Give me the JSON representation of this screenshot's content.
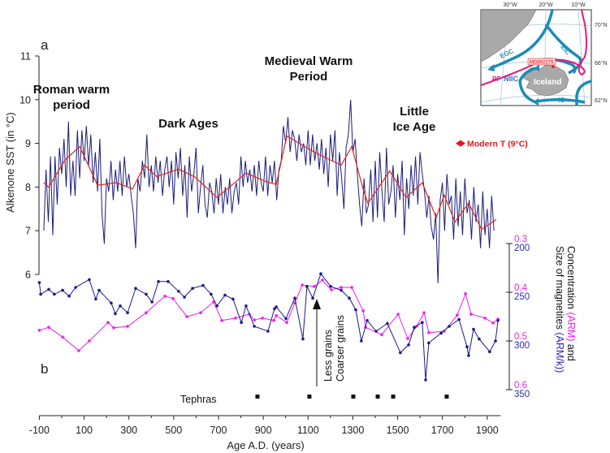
{
  "chart_data": [
    {
      "panel": "a",
      "type": "line",
      "ylabel": "Alkenone SST (in °C)",
      "xlabel": "Age A.D. (years)",
      "xlim": [
        -100,
        1960
      ],
      "ylim": [
        6,
        11
      ],
      "yticks": [
        6,
        7,
        8,
        9,
        10,
        11
      ],
      "xticks": [
        -100,
        100,
        300,
        500,
        700,
        900,
        1100,
        1300,
        1500,
        1700,
        1900
      ],
      "colors": {
        "raw": "#1c1c7c",
        "smoothed": "#e2231a"
      },
      "raw_series": {
        "x_start": -80,
        "x_step": 10,
        "values": [
          7.0,
          8.4,
          7.2,
          8.7,
          6.9,
          8.7,
          7.6,
          8.9,
          8.3,
          9.1,
          8.0,
          9.5,
          7.8,
          8.6,
          7.8,
          9.3,
          8.2,
          9.3,
          8.6,
          9.4,
          8.5,
          9.2,
          8.1,
          8.8,
          7.9,
          9.1,
          7.4,
          6.7,
          8.2,
          7.9,
          8.6,
          7.7,
          8.4,
          7.9,
          8.6,
          7.8,
          8.7,
          8.0,
          8.3,
          7.8,
          7.4,
          6.6,
          8.2,
          7.9,
          8.6,
          8.2,
          9.2,
          8.0,
          8.5,
          7.9,
          8.7,
          8.1,
          8.6,
          7.8,
          8.4,
          8.7,
          8.0,
          8.6,
          7.6,
          8.8,
          8.2,
          8.9,
          7.8,
          8.5,
          7.3,
          8.7,
          7.9,
          8.3,
          8.9,
          7.4,
          8.0,
          8.5,
          7.6,
          7.3,
          8.1,
          7.9,
          7.4,
          8.2,
          7.6,
          8.3,
          7.4,
          8.0,
          7.6,
          8.2,
          7.4,
          7.9,
          8.1,
          7.6,
          8.7,
          8.0,
          8.6,
          8.1,
          8.4,
          7.9,
          8.5,
          7.8,
          8.6,
          8.1,
          7.9,
          8.7,
          7.8,
          8.5,
          8.1,
          8.6,
          7.7,
          8.4,
          8.6,
          9.4,
          9.0,
          9.6,
          8.8,
          9.3,
          9.1,
          8.6,
          9.2,
          8.8,
          9.0,
          8.5,
          9.3,
          8.5,
          9.2,
          8.6,
          9.0,
          8.4,
          9.1,
          8.3,
          8.9,
          8.0,
          9.2,
          8.6,
          9.3,
          7.8,
          8.8,
          8.2,
          7.5,
          8.9,
          9.2,
          10.0,
          8.8,
          9.1,
          8.3,
          7.6,
          7.1,
          8.2,
          7.4,
          7.6,
          8.4,
          7.2,
          8.6,
          7.3,
          8.8,
          7.9,
          7.2,
          8.9,
          7.6,
          7.9,
          8.5,
          7.3,
          8.3,
          7.7,
          8.6,
          6.9,
          8.2,
          7.5,
          8.5,
          7.8,
          8.7,
          7.6,
          8.8,
          8.3,
          7.9,
          7.3,
          7.8,
          7.1,
          6.8,
          7.4,
          5.8,
          7.7,
          8.1,
          7.0,
          8.3,
          7.6,
          7.8,
          6.8,
          8.2,
          7.1,
          7.9,
          6.9,
          8.2,
          7.4,
          7.7,
          6.8,
          8.0,
          7.2,
          7.6,
          6.6,
          7.9,
          6.9,
          7.5,
          6.6,
          7.8,
          7.0
        ]
      },
      "smoothed_series": {
        "x": [
          -80,
          -58,
          15,
          80,
          160,
          243,
          316,
          370,
          424,
          522,
          595,
          693,
          823,
          910,
          958,
          1005,
          1128,
          1248,
          1295,
          1346,
          1367,
          1465,
          1538,
          1610,
          1672,
          1708,
          1756,
          1817,
          1875,
          1940
        ],
        "y": [
          8.1,
          8.0,
          8.62,
          8.93,
          8.04,
          8.1,
          7.96,
          8.5,
          8.24,
          8.41,
          8.23,
          7.76,
          8.32,
          8.13,
          8.06,
          9.17,
          8.8,
          8.5,
          8.93,
          7.95,
          7.63,
          8.37,
          7.76,
          8.1,
          7.3,
          7.82,
          7.2,
          7.63,
          7.03,
          7.26
        ]
      },
      "annotations": {
        "roman_1": "Roman warm",
        "roman_2": "period",
        "dark_ages": "Dark Ages",
        "medieval_1": "Medieval Warm",
        "medieval_2": "Period",
        "lia_1": "Little",
        "lia_2": "Ice Age",
        "modern_t": "Modern T (9°C)",
        "modern_t_value": 9,
        "modern_t_color": "#e8141c"
      }
    },
    {
      "panel": "b",
      "type": "line",
      "right_axis": {
        "arm_ticks": [
          "0.3",
          "0.4",
          "0.5",
          "0.6"
        ],
        "armk_ticks": [
          "200",
          "250",
          "300",
          "350"
        ],
        "arm_range_inverted": [
          0.3,
          0.6
        ],
        "armk_range_inverted": [
          200,
          350
        ],
        "label_1_pre": "Concentration ",
        "label_1_arm": "(ARM)",
        "label_1_post": " and",
        "label_2_pre": "Size of  magnetites ",
        "label_2_armk": "(ARM/k))"
      },
      "colors": {
        "arm": "#f01ef0",
        "armk": "#1a1a8c"
      },
      "arm_series": {
        "x": [
          -100,
          -58,
          4,
          76,
          123,
          207,
          232,
          294,
          377,
          461,
          497,
          559,
          620,
          678,
          715,
          776,
          838,
          860,
          896,
          947,
          958,
          1005,
          1041,
          1074,
          1128,
          1164,
          1204,
          1248,
          1295,
          1346,
          1357,
          1429,
          1502,
          1545,
          1585,
          1618,
          1639,
          1708,
          1766,
          1803,
          1828,
          1890,
          1926,
          1948
        ],
        "y": [
          0.478,
          0.472,
          0.492,
          0.52,
          0.5,
          0.462,
          0.473,
          0.47,
          0.442,
          0.408,
          0.413,
          0.45,
          0.442,
          0.42,
          0.458,
          0.453,
          0.445,
          0.457,
          0.453,
          0.458,
          0.448,
          0.462,
          0.422,
          0.385,
          0.388,
          0.375,
          0.395,
          0.39,
          0.39,
          0.438,
          0.472,
          0.487,
          0.445,
          0.495,
          0.47,
          0.442,
          0.483,
          0.48,
          0.447,
          0.403,
          0.445,
          0.453,
          0.463,
          0.455
        ]
      },
      "armk_series": {
        "x": [
          -100,
          -94,
          -58,
          -33,
          4,
          33,
          62,
          123,
          152,
          167,
          221,
          239,
          261,
          294,
          330,
          377,
          403,
          432,
          475,
          522,
          548,
          584,
          631,
          667,
          693,
          729,
          765,
          802,
          823,
          860,
          921,
          950,
          958,
          1001,
          1041,
          1077,
          1095,
          1121,
          1157,
          1201,
          1248,
          1284,
          1313,
          1338,
          1364,
          1404,
          1454,
          1512,
          1549,
          1574,
          1610,
          1625,
          1639,
          1694,
          1730,
          1774,
          1810,
          1817,
          1839,
          1864,
          1911,
          1937,
          1948
        ],
        "y": [
          240,
          252,
          247,
          252,
          248,
          254,
          245,
          237,
          257,
          248,
          261,
          272,
          264,
          271,
          246,
          252,
          260,
          239,
          239,
          249,
          255,
          246,
          243,
          252,
          264,
          253,
          257,
          281,
          264,
          285,
          290,
          267,
          265,
          277,
          256,
          298,
          244,
          256,
          231,
          244,
          248,
          256,
          268,
          300,
          279,
          290,
          282,
          312,
          304,
          286,
          281,
          340,
          302,
          292,
          285,
          278,
          306,
          315,
          288,
          298,
          311,
          300,
          279
        ]
      },
      "arrow_label_1": "Less grains",
      "arrow_label_2": "Coarser grains",
      "tephras_label": "Tephras",
      "tephras_x": [
        874,
        1106,
        1302,
        1411,
        1480,
        1719
      ]
    }
  ],
  "inset_map": {
    "lon_labels": [
      "30°W",
      "20°W",
      "10°W"
    ],
    "lat_labels": [
      "70°N",
      "66°N",
      "62°N"
    ],
    "currents": [
      "EGC",
      "EIC",
      "NIIC",
      "IC"
    ],
    "front": "PF",
    "core": "MD992275",
    "island": "Iceland",
    "colors": {
      "land": "#a9a9a9",
      "current": "#1b8bb8",
      "front": "#e8187a",
      "grid": "#9cc3e0",
      "core": "#e8141c"
    }
  }
}
